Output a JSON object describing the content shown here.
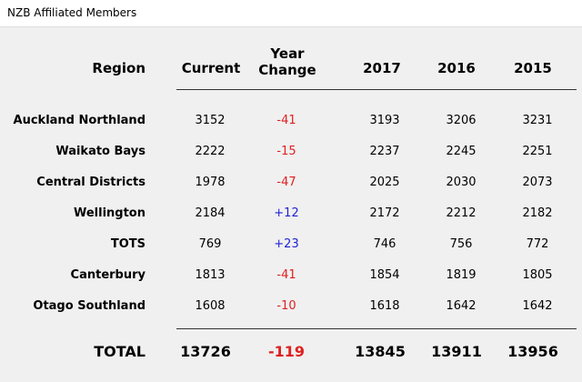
{
  "window": {
    "title": "NZB Affiliated Members"
  },
  "headers": {
    "region": "Region",
    "current": "Current",
    "year_change_line1": "Year",
    "year_change_line2": "Change",
    "y2017": "2017",
    "y2016": "2016",
    "y2015": "2015"
  },
  "rows": [
    {
      "region": "Auckland Northland",
      "current": "3152",
      "change": "-41",
      "y2017": "3193",
      "y2016": "3206",
      "y2015": "3231"
    },
    {
      "region": "Waikato Bays",
      "current": "2222",
      "change": "-15",
      "y2017": "2237",
      "y2016": "2245",
      "y2015": "2251"
    },
    {
      "region": "Central Districts",
      "current": "1978",
      "change": "-47",
      "y2017": "2025",
      "y2016": "2030",
      "y2015": "2073"
    },
    {
      "region": "Wellington",
      "current": "2184",
      "change": "+12",
      "y2017": "2172",
      "y2016": "2212",
      "y2015": "2182"
    },
    {
      "region": "TOTS",
      "current": "769",
      "change": "+23",
      "y2017": "746",
      "y2016": "756",
      "y2015": "772"
    },
    {
      "region": "Canterbury",
      "current": "1813",
      "change": "-41",
      "y2017": "1854",
      "y2016": "1819",
      "y2015": "1805"
    },
    {
      "region": "Otago Southland",
      "current": "1608",
      "change": "-10",
      "y2017": "1618",
      "y2016": "1642",
      "y2015": "1642"
    }
  ],
  "total": {
    "label": "TOTAL",
    "current": "13726",
    "change": "-119",
    "y2017": "13845",
    "y2016": "13911",
    "y2015": "13956"
  },
  "colors": {
    "negative": "#e02020",
    "positive": "#1f1fd6"
  }
}
